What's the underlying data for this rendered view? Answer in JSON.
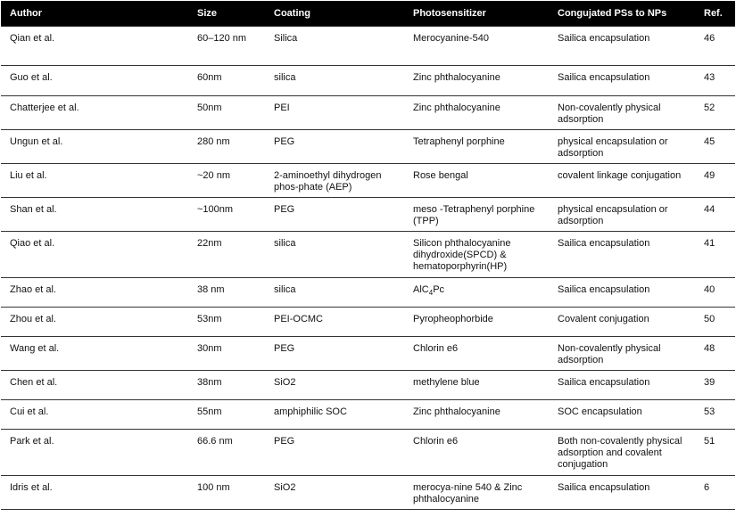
{
  "table": {
    "header": [
      "Author",
      "Size",
      "Coating",
      "Photosensitizer",
      "Congujated PSs to NPs",
      "Ref."
    ],
    "rows": [
      [
        "Qian et al.",
        "60–120  nm",
        "Silica",
        "Merocyanine-540",
        "Sailica encapsulation",
        "46"
      ],
      [
        "Guo et al.",
        "60nm",
        "silica",
        "Zinc  phthalocyanine",
        "Sailica encapsulation",
        "43"
      ],
      [
        "Chatterjee et al.",
        "50nm",
        "PEI",
        "Zinc  phthalocyanine",
        "Non-covalently physical adsorption",
        "52"
      ],
      [
        "Ungun et al.",
        "280 nm",
        "PEG",
        "Tetraphenyl  porphine",
        "physical encapsulation or adsorption",
        "45"
      ],
      [
        "Liu et al.",
        "~20 nm",
        "2-aminoethyl dihydrogen phos-phate (AEP)",
        " Rose bengal",
        "covalent linkage conjugation",
        "49"
      ],
      [
        "Shan et al.",
        "~100nm",
        "PEG",
        "meso -Tetraphenyl porphine (TPP)",
        "physical encapsulation or adsorption",
        "44"
      ],
      [
        "Qiao et al.",
        "22nm",
        "silica",
        "Silicon phthalocyanine dihydroxide(SPCD) & hematoporphyrin(HP)",
        "Sailica encapsulation",
        "41"
      ],
      [
        "Zhao et al.",
        "38 nm",
        "silica",
        {
          "text": "AlC",
          "sub": "4",
          "after": "Pc"
        },
        "Sailica encapsulation",
        "40"
      ],
      [
        "Zhou et al.",
        "53nm",
        "PEI-OCMC",
        "Pyropheophorbide",
        "Covalent  conjugation",
        "50"
      ],
      [
        "Wang et al.",
        "30nm",
        "PEG",
        "Chlorin e6",
        "Non-covalently physical adsorption",
        "48"
      ],
      [
        "Chen et al.",
        "38nm",
        "SiO2",
        "methylene blue",
        "Sailica encapsulation",
        "39"
      ],
      [
        "Cui et al.",
        "55nm",
        "amphiphilic  SOC",
        "Zinc  phthalocyanine",
        "SOC encapsulation",
        "53"
      ],
      [
        "Park et al.",
        "66.6 nm",
        "PEG",
        "Chlorin e6",
        "Both non-covalently physical adsorption and covalent conjugation",
        "51"
      ],
      [
        "Idris et al.",
        "100  nm",
        "SiO2",
        "merocya-nine 540  &  Zinc phthalocyanine",
        "Sailica encapsulation",
        "6"
      ]
    ]
  }
}
